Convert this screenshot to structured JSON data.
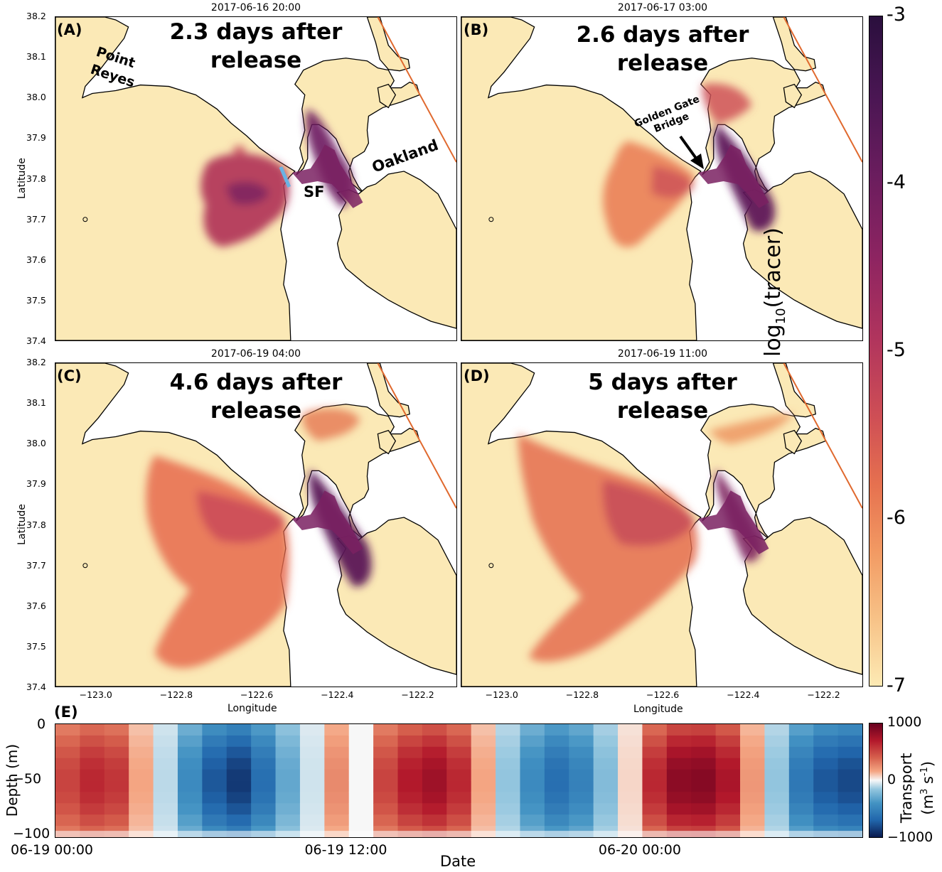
{
  "chart_data": [
    {
      "type": "heatmap",
      "subtype": "map",
      "panel": "(A)",
      "title": "2017-06-16 20:00",
      "headline": [
        "2.3 days after",
        "release"
      ],
      "xlabel": "",
      "ylabel": "Latitude",
      "xlim": [
        -123.1,
        -122.1
      ],
      "ylim": [
        37.4,
        38.2
      ],
      "yticks": [
        "37.4",
        "37.5",
        "37.6",
        "37.7",
        "37.8",
        "37.9",
        "38.0",
        "38.1",
        "38.2"
      ],
      "labels": {
        "point_reyes": [
          "Point",
          "Reyes"
        ],
        "oakland": "Oakland",
        "sf": "SF"
      }
    },
    {
      "type": "heatmap",
      "subtype": "map",
      "panel": "(B)",
      "title": "2017-06-17 03:00",
      "headline": [
        "2.6 days after",
        "release"
      ],
      "labels": {
        "golden_gate": [
          "Golden Gate",
          "Bridge"
        ]
      }
    },
    {
      "type": "heatmap",
      "subtype": "map",
      "panel": "(C)",
      "title": "2017-06-19 04:00",
      "headline": [
        "4.6 days after",
        "release"
      ],
      "xlabel": "Longitude",
      "ylabel": "Latitude",
      "xticks": [
        "−123.0",
        "−122.8",
        "−122.6",
        "−122.4",
        "−122.2"
      ],
      "yticks": [
        "37.4",
        "37.5",
        "37.6",
        "37.7",
        "37.8",
        "37.9",
        "38.0",
        "38.1",
        "38.2"
      ]
    },
    {
      "type": "heatmap",
      "subtype": "map",
      "panel": "(D)",
      "title": "2017-06-19 11:00",
      "headline": [
        "5 days after",
        "release"
      ],
      "xlabel": "Longitude",
      "xticks": [
        "−123.0",
        "−122.8",
        "−122.6",
        "−122.4",
        "−122.2"
      ]
    },
    {
      "type": "heatmap",
      "panel": "(E)",
      "xlabel": "Date",
      "ylabel": "Depth (m)",
      "xticks": [
        "06-19 00:00",
        "06-19 12:00",
        "06-20 00:00"
      ],
      "yticks": [
        "0",
        "−50",
        "−100"
      ],
      "ylim": [
        -100,
        0
      ],
      "columns_hourly_transport": [
        600,
        700,
        650,
        250,
        -150,
        -550,
        -800,
        -900,
        -700,
        -400,
        -100,
        350,
        0,
        600,
        750,
        820,
        700,
        250,
        -250,
        -550,
        -700,
        -600,
        -300,
        100,
        700,
        880,
        900,
        780,
        300,
        -250,
        -650,
        -800,
        -850
      ]
    }
  ],
  "colorbar_tracer": {
    "label_prefix": "log",
    "label_sub": "10",
    "label_suffix": "(tracer)",
    "ticks": [
      "-3",
      "-4",
      "-5",
      "-6",
      "-7"
    ],
    "range": [
      -7,
      -3
    ]
  },
  "colorbar_transport": {
    "label_line1": "Transport",
    "label_line2_prefix": "(m",
    "label_sup1": "3",
    "label_mid": " s",
    "label_sup2": "-1",
    "label_suffix": ")",
    "ticks": [
      "1000",
      "0",
      "−1000"
    ],
    "range": [
      -1000,
      1000
    ]
  },
  "colors": {
    "land": "#fbe9b6",
    "coast": "#000000",
    "boundary_line": "#e0692e",
    "transect": "#6ab3e4"
  }
}
